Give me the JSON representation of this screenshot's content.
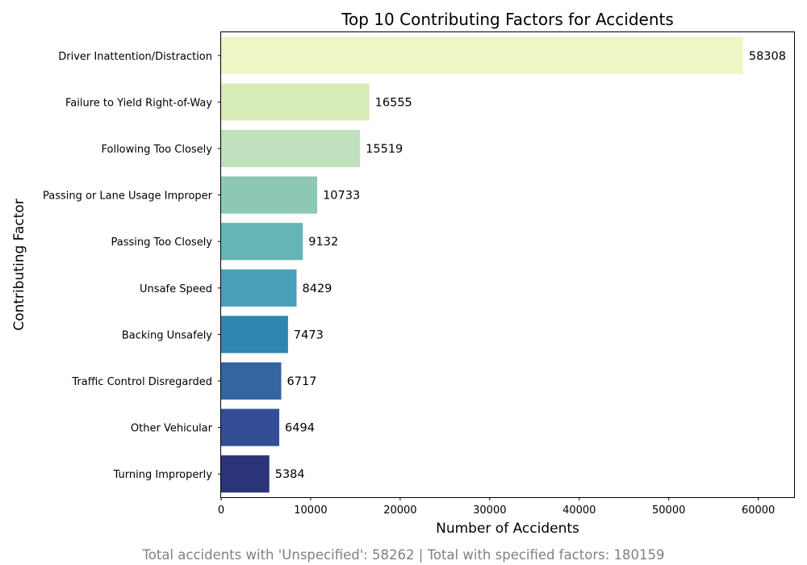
{
  "chart_data": {
    "type": "bar",
    "orientation": "horizontal",
    "title": "Top 10 Contributing Factors for Accidents",
    "xlabel": "Number of Accidents",
    "ylabel": "Contributing Factor",
    "categories": [
      "Driver Inattention/Distraction",
      "Failure to Yield Right-of-Way",
      "Following Too Closely",
      "Passing or Lane Usage Improper",
      "Passing Too Closely",
      "Unsafe Speed",
      "Backing Unsafely",
      "Traffic Control Disregarded",
      "Other Vehicular",
      "Turning Improperly"
    ],
    "values": [
      58308,
      16555,
      15519,
      10733,
      9132,
      8429,
      7473,
      6717,
      6494,
      5384
    ],
    "data_labels": [
      "58308",
      "16555",
      "15519",
      "10733",
      "9132",
      "8429",
      "7473",
      "6717",
      "6494",
      "5384"
    ],
    "xlim": [
      0,
      64000
    ],
    "xticks": [
      0,
      10000,
      20000,
      30000,
      40000,
      50000,
      60000
    ],
    "xtick_labels": [
      "0",
      "10000",
      "20000",
      "30000",
      "40000",
      "50000",
      "60000"
    ],
    "colors": [
      "#edf6c5",
      "#d8ecba",
      "#bfe0bc",
      "#8dc8b4",
      "#65b5b6",
      "#48a1b8",
      "#2f86b0",
      "#3366a0",
      "#334e95",
      "#2b3379"
    ],
    "grid": false,
    "legend": "none",
    "footnote": "Total accidents with 'Unspecified': 58262 | Total with specified factors: 180159"
  }
}
